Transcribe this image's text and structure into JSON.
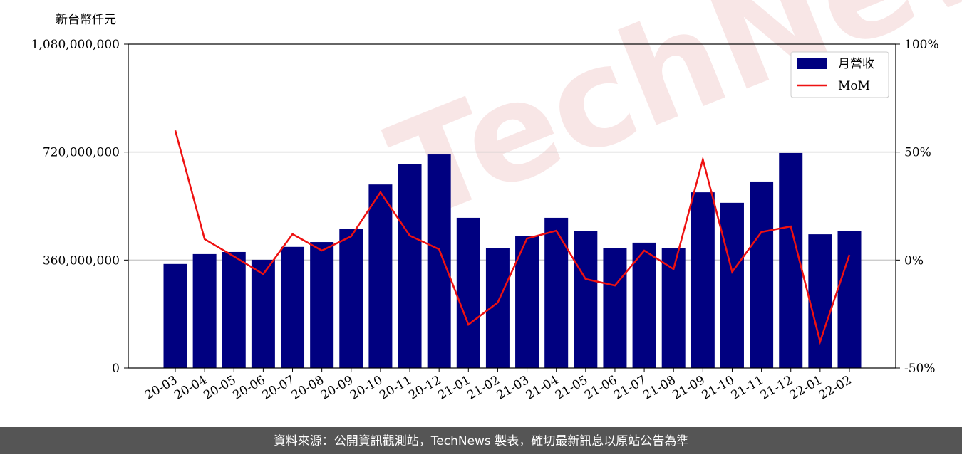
{
  "chart_data": {
    "type": "bar_line",
    "unit_label": "新台幣仟元",
    "watermark": "TechNews",
    "footer": "資料來源：公開資訊觀測站，TechNews 製表，確切最新訊息以原站公告為準",
    "categories": [
      "20-03",
      "20-04",
      "20-05",
      "20-06",
      "20-07",
      "20-08",
      "20-09",
      "20-10",
      "20-11",
      "20-12",
      "21-01",
      "21-02",
      "21-03",
      "21-04",
      "21-05",
      "21-06",
      "21-07",
      "21-08",
      "21-09",
      "21-10",
      "21-11",
      "21-12",
      "22-01",
      "22-02"
    ],
    "series": [
      {
        "name": "月營收",
        "color": "#000080",
        "type": "bar",
        "values": [
          347000000,
          380000000,
          387000000,
          361000000,
          404000000,
          420000000,
          465000000,
          612000000,
          681000000,
          712000000,
          501000000,
          401000000,
          441000000,
          501000000,
          456000000,
          401000000,
          418000000,
          399000000,
          586000000,
          551000000,
          622000000,
          717000000,
          446000000,
          456000000
        ]
      },
      {
        "name": "MoM",
        "color": "#ee1111",
        "type": "line",
        "axis": "y2",
        "values": [
          60,
          9.7,
          1.7,
          -6.5,
          12,
          4.4,
          11,
          31.4,
          11.3,
          5,
          -29.9,
          -19.7,
          10,
          13.6,
          -8.8,
          -11.8,
          4.4,
          -4.2,
          46.6,
          -5.5,
          13,
          15.6,
          -37.8,
          2.4
        ]
      }
    ],
    "ylim": [
      0,
      1080000000
    ],
    "yticks": [
      0,
      {
        "value": 360000000,
        "label": "360,000,000"
      },
      {
        "value": 720000000,
        "label": "720,000,000"
      },
      {
        "value": 1080000000,
        "label": "1,080,000,000"
      }
    ],
    "y2lim": [
      -50,
      100
    ],
    "y2ticks": [
      {
        "value": -50,
        "label": "-50%"
      },
      {
        "value": 0,
        "label": "0%"
      },
      {
        "value": 50,
        "label": "50%"
      },
      {
        "value": 100,
        "label": "100%"
      }
    ],
    "grid": true,
    "legend": "upper right"
  }
}
